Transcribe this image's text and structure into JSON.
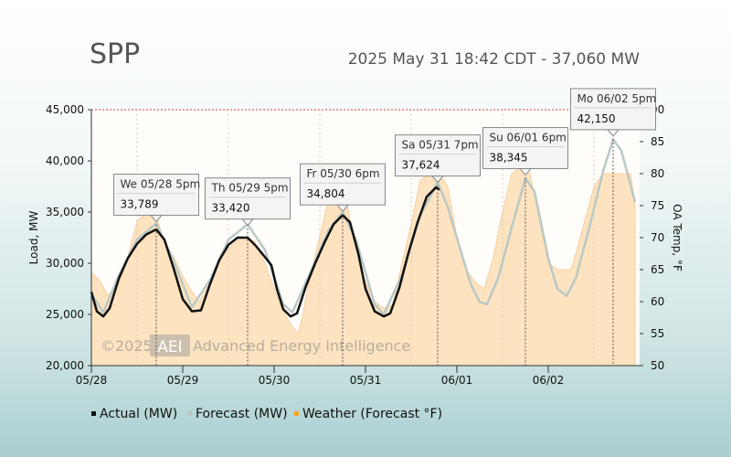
{
  "header": {
    "region": "SPP",
    "status": "2025 May 31 18:42 CDT - 37,060 MW"
  },
  "watermark": {
    "copyright": "©2025",
    "logo": "AEI",
    "company": "Advanced Energy Intelligence"
  },
  "colors": {
    "actual": "#111111",
    "forecast": "#b9c9c6",
    "weather_fill": "#fde3bf",
    "weather_line": "#f5cfa0",
    "highlight": "#cc0000",
    "callout_bg": "#f4f4f4"
  },
  "chart_data": {
    "type": "line",
    "ylabel": "Load, MW",
    "y2label": "OA Temp, °F",
    "ylim": [
      20000,
      45000
    ],
    "y2lim": [
      50,
      90
    ],
    "y_ticks": [
      "20,000",
      "25,000",
      "30,000",
      "35,000",
      "40,000",
      "45,000"
    ],
    "y2_ticks": [
      "50",
      "55",
      "60",
      "65",
      "70",
      "75",
      "80",
      "85",
      "90"
    ],
    "x_ticks": [
      "05/28",
      "05/29",
      "05/30",
      "05/31",
      "06/01",
      "06/02"
    ],
    "legend": [
      {
        "label": "Actual (MW)",
        "color": "#111111"
      },
      {
        "label": "Forecast (MW)",
        "color": "#b9c9c6"
      },
      {
        "label": "Weather (Forecast °F)",
        "color": "#f5a623"
      }
    ],
    "callouts": [
      {
        "title": "We 05/28 5pm",
        "value": "33,789",
        "day": 0.71,
        "mw": 33789,
        "highlight": false
      },
      {
        "title": "Th 05/29 5pm",
        "value": "33,420",
        "day": 1.71,
        "mw": 33420,
        "highlight": false
      },
      {
        "title": "Fr 05/30 6pm",
        "value": "34,804",
        "day": 2.75,
        "mw": 34804,
        "highlight": false
      },
      {
        "title": "Sa 05/31 7pm",
        "value": "37,624",
        "day": 3.79,
        "mw": 37624,
        "highlight": true
      },
      {
        "title": "Su 06/01 6pm",
        "value": "38,345",
        "day": 4.75,
        "mw": 38345,
        "highlight": false
      },
      {
        "title": "Mo 06/02 5pm",
        "value": "42,150",
        "day": 5.71,
        "mw": 42150,
        "highlight": false
      }
    ],
    "series": [
      {
        "name": "Actual (MW)",
        "points": [
          [
            0.0,
            27200
          ],
          [
            0.06,
            25300
          ],
          [
            0.13,
            24800
          ],
          [
            0.2,
            25600
          ],
          [
            0.3,
            28500
          ],
          [
            0.4,
            30500
          ],
          [
            0.5,
            31900
          ],
          [
            0.6,
            32800
          ],
          [
            0.71,
            33300
          ],
          [
            0.8,
            32300
          ],
          [
            0.9,
            29500
          ],
          [
            1.0,
            26500
          ],
          [
            1.1,
            25300
          ],
          [
            1.2,
            25400
          ],
          [
            1.3,
            28000
          ],
          [
            1.4,
            30300
          ],
          [
            1.5,
            31800
          ],
          [
            1.6,
            32500
          ],
          [
            1.71,
            32500
          ],
          [
            1.8,
            31700
          ],
          [
            1.9,
            30600
          ],
          [
            1.97,
            29800
          ],
          [
            2.03,
            27500
          ],
          [
            2.1,
            25500
          ],
          [
            2.18,
            24800
          ],
          [
            2.25,
            25100
          ],
          [
            2.35,
            27800
          ],
          [
            2.45,
            30000
          ],
          [
            2.55,
            32000
          ],
          [
            2.65,
            33800
          ],
          [
            2.75,
            34700
          ],
          [
            2.83,
            34000
          ],
          [
            2.92,
            31000
          ],
          [
            3.0,
            27500
          ],
          [
            3.1,
            25300
          ],
          [
            3.2,
            24800
          ],
          [
            3.27,
            25100
          ],
          [
            3.37,
            27600
          ],
          [
            3.47,
            31000
          ],
          [
            3.57,
            34000
          ],
          [
            3.67,
            36500
          ],
          [
            3.77,
            37400
          ],
          [
            3.81,
            37200
          ]
        ]
      },
      {
        "name": "Forecast (MW)",
        "points": [
          [
            0.0,
            27000
          ],
          [
            0.13,
            25200
          ],
          [
            0.3,
            28800
          ],
          [
            0.5,
            32300
          ],
          [
            0.71,
            33900
          ],
          [
            0.9,
            30200
          ],
          [
            1.1,
            25700
          ],
          [
            1.3,
            28400
          ],
          [
            1.5,
            32300
          ],
          [
            1.71,
            33800
          ],
          [
            1.9,
            31300
          ],
          [
            2.1,
            26000
          ],
          [
            2.2,
            25200
          ],
          [
            2.4,
            29200
          ],
          [
            2.6,
            33300
          ],
          [
            2.75,
            35000
          ],
          [
            2.9,
            32200
          ],
          [
            3.1,
            26000
          ],
          [
            3.2,
            25000
          ],
          [
            3.4,
            28900
          ],
          [
            3.6,
            34700
          ],
          [
            3.79,
            37900
          ],
          [
            3.9,
            35500
          ],
          [
            4.05,
            31000
          ],
          [
            4.15,
            28000
          ],
          [
            4.25,
            26200
          ],
          [
            4.33,
            26000
          ],
          [
            4.45,
            28500
          ],
          [
            4.6,
            33500
          ],
          [
            4.75,
            38300
          ],
          [
            4.85,
            37000
          ],
          [
            5.0,
            30500
          ],
          [
            5.1,
            27500
          ],
          [
            5.2,
            26800
          ],
          [
            5.3,
            28500
          ],
          [
            5.45,
            33500
          ],
          [
            5.6,
            39000
          ],
          [
            5.71,
            42100
          ],
          [
            5.8,
            41000
          ],
          [
            5.95,
            36000
          ]
        ]
      },
      {
        "name": "Weather (Forecast °F)",
        "points": [
          [
            0.0,
            64.5
          ],
          [
            0.08,
            63.5
          ],
          [
            0.18,
            61
          ],
          [
            0.28,
            62
          ],
          [
            0.38,
            66
          ],
          [
            0.5,
            72.5
          ],
          [
            0.6,
            74
          ],
          [
            0.72,
            73
          ],
          [
            0.8,
            69
          ],
          [
            0.9,
            67
          ],
          [
            1.0,
            64
          ],
          [
            1.08,
            62
          ],
          [
            1.18,
            60
          ],
          [
            1.3,
            63
          ],
          [
            1.42,
            67
          ],
          [
            1.55,
            69
          ],
          [
            1.65,
            70
          ],
          [
            1.78,
            69.5
          ],
          [
            1.9,
            66
          ],
          [
            2.0,
            62
          ],
          [
            2.08,
            59
          ],
          [
            2.18,
            56.5
          ],
          [
            2.26,
            55
          ],
          [
            2.3,
            57
          ],
          [
            2.38,
            63
          ],
          [
            2.48,
            69
          ],
          [
            2.58,
            75
          ],
          [
            2.7,
            76
          ],
          [
            2.8,
            75
          ],
          [
            2.9,
            68
          ],
          [
            3.0,
            63
          ],
          [
            3.1,
            60
          ],
          [
            3.2,
            59
          ],
          [
            3.3,
            59.5
          ],
          [
            3.4,
            66
          ],
          [
            3.5,
            72
          ],
          [
            3.6,
            79
          ],
          [
            3.7,
            80
          ],
          [
            3.8,
            80
          ],
          [
            3.9,
            78
          ],
          [
            4.0,
            70
          ],
          [
            4.1,
            65
          ],
          [
            4.2,
            63
          ],
          [
            4.3,
            62
          ],
          [
            4.4,
            67
          ],
          [
            4.5,
            74
          ],
          [
            4.6,
            80
          ],
          [
            4.7,
            81
          ],
          [
            4.8,
            80
          ],
          [
            4.9,
            73
          ],
          [
            5.0,
            66
          ],
          [
            5.1,
            65
          ],
          [
            5.25,
            65
          ],
          [
            5.35,
            70
          ],
          [
            5.5,
            78
          ],
          [
            5.6,
            80
          ],
          [
            5.75,
            80
          ],
          [
            5.9,
            80
          ],
          [
            5.95,
            75
          ]
        ]
      }
    ]
  }
}
